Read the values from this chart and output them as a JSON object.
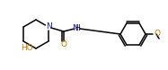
{
  "bg_color": "#ffffff",
  "line_color": "#000000",
  "atom_colors": {
    "N": "#1a1aaa",
    "O": "#cc7700",
    "H": "#000000"
  },
  "figsize": [
    1.87,
    0.78
  ],
  "dpi": 100,
  "lw": 1.1
}
